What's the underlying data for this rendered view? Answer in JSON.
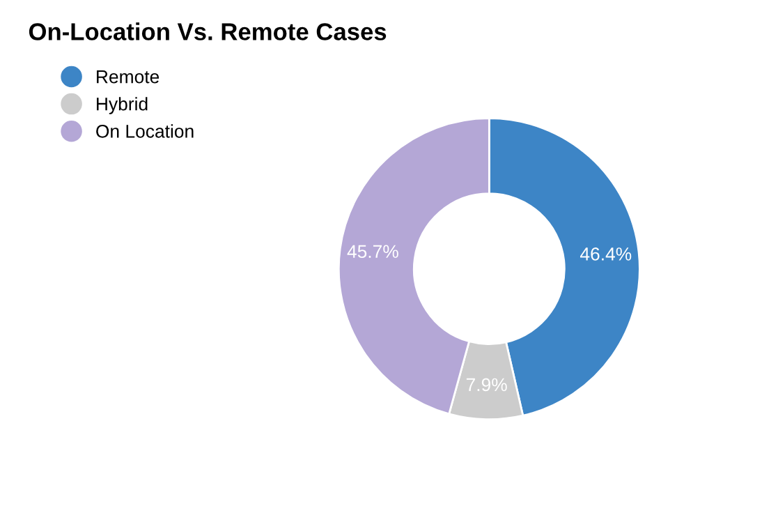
{
  "chart_data": {
    "type": "donut",
    "title": "On-Location Vs. Remote Cases",
    "categories": [
      "Remote",
      "Hybrid",
      "On Location"
    ],
    "values": [
      46.4,
      7.9,
      45.7
    ],
    "colors": [
      "#3d85c6",
      "#cccccc",
      "#b4a7d6"
    ],
    "value_labels": [
      "46.4%",
      "7.9%",
      "45.7%"
    ],
    "legend": "top left"
  }
}
